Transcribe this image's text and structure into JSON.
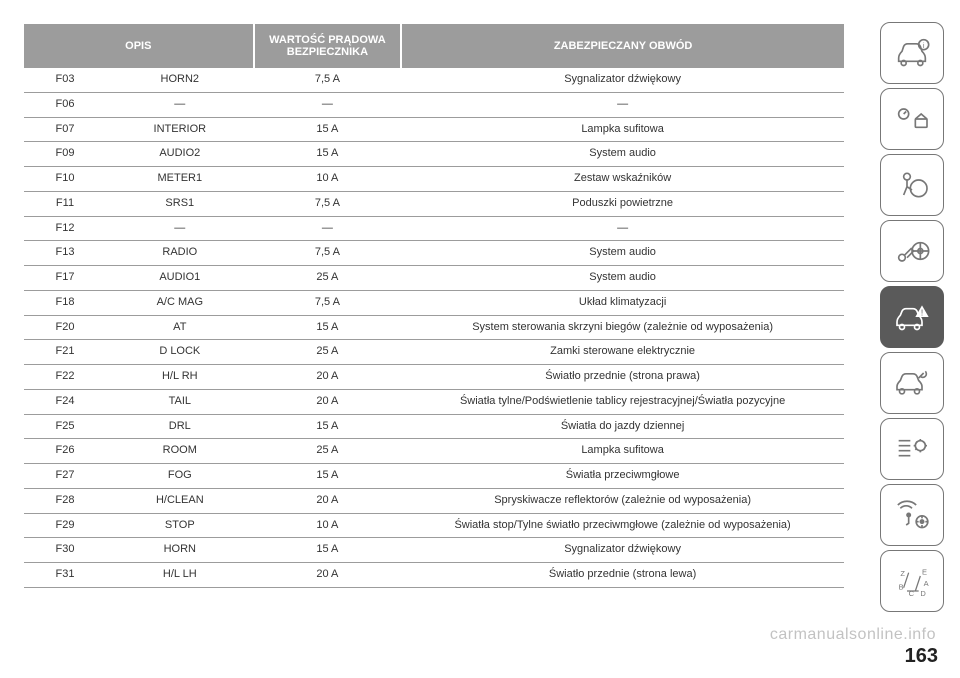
{
  "table": {
    "headers": {
      "opis": "OPIS",
      "rating": "WARTOŚĆ PRĄDOWA BEZPIECZNIKA",
      "circuit": "ZABEZPIECZANY OBWÓD"
    },
    "header_bg": "#9c9c9c",
    "header_fg": "#ffffff",
    "row_border": "#9c9c9c",
    "font_size": 11,
    "rows": [
      {
        "code": "F03",
        "label": "HORN2",
        "rating": "7,5 A",
        "circuit": "Sygnalizator dźwiękowy"
      },
      {
        "code": "F06",
        "label": "—",
        "rating": "—",
        "circuit": "—"
      },
      {
        "code": "F07",
        "label": "INTERIOR",
        "rating": "15 A",
        "circuit": "Lampka sufitowa"
      },
      {
        "code": "F09",
        "label": "AUDIO2",
        "rating": "15 A",
        "circuit": "System audio"
      },
      {
        "code": "F10",
        "label": "METER1",
        "rating": "10 A",
        "circuit": "Zestaw wskaźników"
      },
      {
        "code": "F11",
        "label": "SRS1",
        "rating": "7,5 A",
        "circuit": "Poduszki powietrzne"
      },
      {
        "code": "F12",
        "label": "—",
        "rating": "—",
        "circuit": "—"
      },
      {
        "code": "F13",
        "label": "RADIO",
        "rating": "7,5 A",
        "circuit": "System audio"
      },
      {
        "code": "F17",
        "label": "AUDIO1",
        "rating": "25 A",
        "circuit": "System audio"
      },
      {
        "code": "F18",
        "label": "A/C MAG",
        "rating": "7,5 A",
        "circuit": "Układ klimatyzacji"
      },
      {
        "code": "F20",
        "label": "AT",
        "rating": "15 A",
        "circuit": "System sterowania skrzyni biegów (zależnie od wyposażenia)"
      },
      {
        "code": "F21",
        "label": "D LOCK",
        "rating": "25 A",
        "circuit": "Zamki sterowane elektrycznie"
      },
      {
        "code": "F22",
        "label": "H/L RH",
        "rating": "20 A",
        "circuit": "Światło przednie (strona prawa)"
      },
      {
        "code": "F24",
        "label": "TAIL",
        "rating": "20 A",
        "circuit": "Światła tylne/Podświetlenie tablicy rejestracyjnej/Światła pozycyjne"
      },
      {
        "code": "F25",
        "label": "DRL",
        "rating": "15 A",
        "circuit": "Światła do jazdy dziennej"
      },
      {
        "code": "F26",
        "label": "ROOM",
        "rating": "25 A",
        "circuit": "Lampka sufitowa"
      },
      {
        "code": "F27",
        "label": "FOG",
        "rating": "15 A",
        "circuit": "Światła przeciwmgłowe"
      },
      {
        "code": "F28",
        "label": "H/CLEAN",
        "rating": "20 A",
        "circuit": "Spryskiwacze reflektorów (zależnie od wyposażenia)"
      },
      {
        "code": "F29",
        "label": "STOP",
        "rating": "10 A",
        "circuit": "Światła stop/Tylne światło przeciwmgłowe (zależnie od wyposażenia)"
      },
      {
        "code": "F30",
        "label": "HORN",
        "rating": "15 A",
        "circuit": "Sygnalizator dźwiękowy"
      },
      {
        "code": "F31",
        "label": "H/L LH",
        "rating": "20 A",
        "circuit": "Światło przednie (strona lewa)"
      }
    ]
  },
  "sidebar": {
    "border_color": "#777",
    "active_bg": "#5a5a5a",
    "items": [
      {
        "name": "car-info-icon",
        "active": false
      },
      {
        "name": "dashboard-icon",
        "active": false
      },
      {
        "name": "airbag-icon",
        "active": false
      },
      {
        "name": "key-steering-icon",
        "active": false
      },
      {
        "name": "car-warning-icon",
        "active": true
      },
      {
        "name": "car-service-icon",
        "active": false
      },
      {
        "name": "settings-list-icon",
        "active": false
      },
      {
        "name": "media-nav-icon",
        "active": false
      },
      {
        "name": "alpha-index-icon",
        "active": false
      }
    ]
  },
  "footer": {
    "page_number": "163",
    "watermark": "carmanualsonline.info"
  }
}
